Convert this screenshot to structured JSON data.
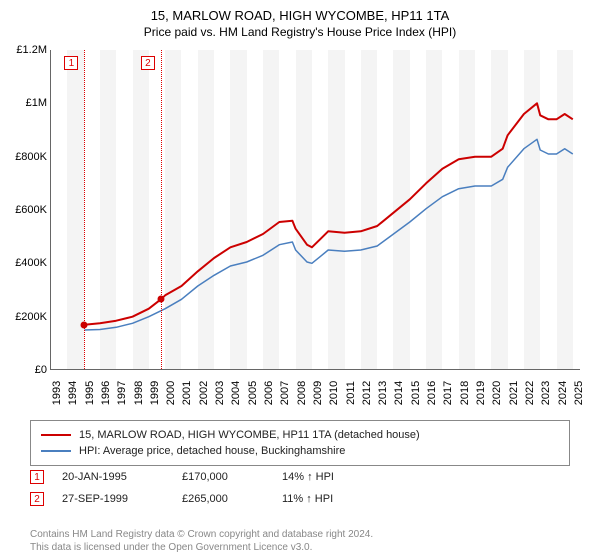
{
  "title_line1": "15, MARLOW ROAD, HIGH WYCOMBE, HP11 1TA",
  "title_line2": "Price paid vs. HM Land Registry's House Price Index (HPI)",
  "chart": {
    "type": "line",
    "x_range": [
      1993,
      2025.5
    ],
    "y_range": [
      0,
      1200000
    ],
    "y_ticks": [
      0,
      200000,
      400000,
      600000,
      800000,
      1000000,
      1200000
    ],
    "y_tick_labels": [
      "£0",
      "£200K",
      "£400K",
      "£600K",
      "£800K",
      "£1M",
      "£1.2M"
    ],
    "x_ticks": [
      1993,
      1994,
      1995,
      1996,
      1997,
      1998,
      1999,
      2000,
      2001,
      2002,
      2003,
      2004,
      2005,
      2006,
      2007,
      2008,
      2009,
      2010,
      2011,
      2012,
      2013,
      2014,
      2015,
      2016,
      2017,
      2018,
      2019,
      2020,
      2021,
      2022,
      2023,
      2024,
      2025
    ],
    "band_color": "#f4f4f4",
    "axis_font_size": 11,
    "series": {
      "red": {
        "color": "#cc0000",
        "width": 2,
        "label": "15, MARLOW ROAD, HIGH WYCOMBE, HP11 1TA (detached house)",
        "points": [
          [
            1995.05,
            170000
          ],
          [
            1996,
            175000
          ],
          [
            1997,
            185000
          ],
          [
            1998,
            200000
          ],
          [
            1999,
            230000
          ],
          [
            1999.74,
            265000
          ],
          [
            2000,
            280000
          ],
          [
            2001,
            315000
          ],
          [
            2002,
            370000
          ],
          [
            2003,
            420000
          ],
          [
            2004,
            460000
          ],
          [
            2005,
            480000
          ],
          [
            2006,
            510000
          ],
          [
            2007,
            555000
          ],
          [
            2007.8,
            560000
          ],
          [
            2008,
            530000
          ],
          [
            2008.7,
            470000
          ],
          [
            2009,
            460000
          ],
          [
            2009.5,
            490000
          ],
          [
            2010,
            520000
          ],
          [
            2011,
            515000
          ],
          [
            2012,
            520000
          ],
          [
            2013,
            540000
          ],
          [
            2014,
            590000
          ],
          [
            2015,
            640000
          ],
          [
            2016,
            700000
          ],
          [
            2017,
            755000
          ],
          [
            2018,
            790000
          ],
          [
            2019,
            800000
          ],
          [
            2020,
            800000
          ],
          [
            2020.7,
            830000
          ],
          [
            2021,
            880000
          ],
          [
            2022,
            960000
          ],
          [
            2022.8,
            1000000
          ],
          [
            2023,
            955000
          ],
          [
            2023.5,
            940000
          ],
          [
            2024,
            940000
          ],
          [
            2024.5,
            960000
          ],
          [
            2025,
            940000
          ]
        ]
      },
      "blue": {
        "color": "#4a7fbf",
        "width": 1.5,
        "label": "HPI: Average price, detached house, Buckinghamshire",
        "points": [
          [
            1995.05,
            150000
          ],
          [
            1996,
            152000
          ],
          [
            1997,
            160000
          ],
          [
            1998,
            175000
          ],
          [
            1999,
            200000
          ],
          [
            2000,
            230000
          ],
          [
            2001,
            265000
          ],
          [
            2002,
            315000
          ],
          [
            2003,
            355000
          ],
          [
            2004,
            390000
          ],
          [
            2005,
            405000
          ],
          [
            2006,
            430000
          ],
          [
            2007,
            470000
          ],
          [
            2007.8,
            480000
          ],
          [
            2008,
            450000
          ],
          [
            2008.7,
            405000
          ],
          [
            2009,
            400000
          ],
          [
            2009.5,
            425000
          ],
          [
            2010,
            450000
          ],
          [
            2011,
            445000
          ],
          [
            2012,
            450000
          ],
          [
            2013,
            465000
          ],
          [
            2014,
            510000
          ],
          [
            2015,
            555000
          ],
          [
            2016,
            605000
          ],
          [
            2017,
            650000
          ],
          [
            2018,
            680000
          ],
          [
            2019,
            690000
          ],
          [
            2020,
            690000
          ],
          [
            2020.7,
            715000
          ],
          [
            2021,
            760000
          ],
          [
            2022,
            830000
          ],
          [
            2022.8,
            865000
          ],
          [
            2023,
            825000
          ],
          [
            2023.5,
            810000
          ],
          [
            2024,
            810000
          ],
          [
            2024.5,
            830000
          ],
          [
            2025,
            810000
          ]
        ]
      }
    },
    "sale_markers": [
      {
        "n": "1",
        "x": 1995.05,
        "y": 170000,
        "color": "#cc0000"
      },
      {
        "n": "2",
        "x": 1999.74,
        "y": 265000,
        "color": "#cc0000"
      }
    ]
  },
  "legend": {
    "red_label": "15, MARLOW ROAD, HIGH WYCOMBE, HP11 1TA (detached house)",
    "blue_label": "HPI: Average price, detached house, Buckinghamshire"
  },
  "sales": [
    {
      "n": "1",
      "date": "20-JAN-1995",
      "price": "£170,000",
      "change": "14% ↑ HPI"
    },
    {
      "n": "2",
      "date": "27-SEP-1999",
      "price": "£265,000",
      "change": "11% ↑ HPI"
    }
  ],
  "footer_line1": "Contains HM Land Registry data © Crown copyright and database right 2024.",
  "footer_line2": "This data is licensed under the Open Government Licence v3.0."
}
